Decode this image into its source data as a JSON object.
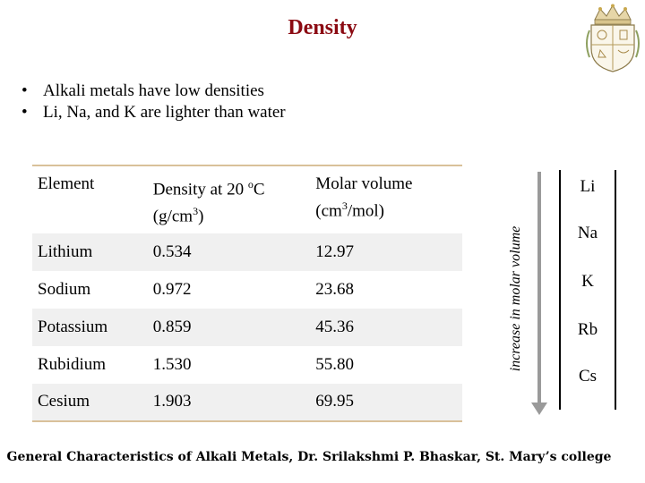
{
  "slide": {
    "title": "Density",
    "bullets": [
      "Alkali metals have low densities",
      "Li, Na, and  K are lighter than water"
    ],
    "bullet_marker": "•"
  },
  "table": {
    "headers": {
      "element": "Element",
      "density_pre": "Density at 20 ",
      "density_sup": "o",
      "density_post": "C",
      "density_unit_pre": "(g/cm",
      "density_unit_sup": "3",
      "density_unit_post": ")",
      "molar_title": "Molar volume",
      "molar_unit_pre": "(cm",
      "molar_unit_sup": "3",
      "molar_unit_post": "/mol)"
    },
    "rows": [
      {
        "element": "Lithium",
        "density": "0.534",
        "molar_volume": "12.97"
      },
      {
        "element": "Sodium",
        "density": "0.972",
        "molar_volume": "23.68"
      },
      {
        "element": "Potassium",
        "density": "0.859",
        "molar_volume": "45.36"
      },
      {
        "element": "Rubidium",
        "density": "1.530",
        "molar_volume": "55.80"
      },
      {
        "element": "Cesium",
        "density": "1.903",
        "molar_volume": "69.95"
      }
    ]
  },
  "trend": {
    "label": "increase in molar volume",
    "elements": [
      "Li",
      "Na",
      "K",
      "Rb",
      "Cs"
    ]
  },
  "footer": "General Characteristics of Alkali Metals, Dr. Srilakshmi P. Bhaskar, St. Mary’s college",
  "colors": {
    "title": "#8b0a12",
    "table_border": "#d9c19a",
    "row_shade": "#f0f0f0",
    "arrow": "#9a9a9a"
  },
  "icons": {
    "crest": "college-crest-icon",
    "arrow": "down-arrow-icon"
  }
}
